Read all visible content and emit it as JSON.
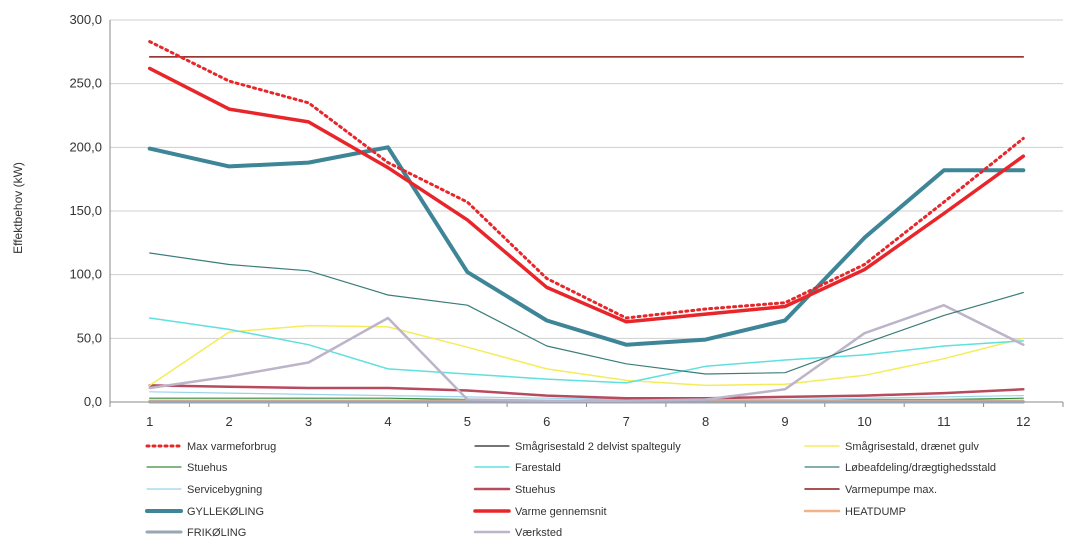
{
  "chart_data": {
    "type": "line",
    "title": "",
    "xlabel": "",
    "ylabel": "Effektbehov (kW)",
    "ylim": [
      0,
      300
    ],
    "yticks": [
      "0,0",
      "50,0",
      "100,0",
      "150,0",
      "200,0",
      "250,0",
      "300,0"
    ],
    "x": [
      1,
      2,
      3,
      4,
      5,
      6,
      7,
      8,
      9,
      10,
      11,
      12
    ],
    "grid": "horizontal",
    "legend_position": "bottom",
    "series": [
      {
        "name": "Max varmeforbrug",
        "color": "#e8262a",
        "style": "dotted",
        "width": 3,
        "values": [
          283,
          252,
          235,
          188,
          157,
          97,
          66,
          73,
          78,
          108,
          157,
          207
        ]
      },
      {
        "name": "Smågrisestald 2 delvist spalteguly",
        "color": "#222222",
        "style": "solid",
        "width": 1.2,
        "values": [
          0,
          0,
          0,
          0,
          0,
          0,
          0,
          0,
          0,
          0,
          0,
          0
        ]
      },
      {
        "name": "Smågrisestald, drænet gulv",
        "color": "#f5ec5a",
        "style": "solid",
        "width": 1.5,
        "values": [
          13,
          55,
          60,
          59,
          43,
          26,
          17,
          13,
          14,
          21,
          34,
          50
        ]
      },
      {
        "name": "Stuehus",
        "color": "#3a8a3a",
        "style": "solid",
        "width": 1.2,
        "values": [
          3,
          3,
          3,
          3,
          2,
          1,
          1,
          1,
          1,
          2,
          2,
          3
        ]
      },
      {
        "name": "Farestald",
        "color": "#5fe0e0",
        "style": "solid",
        "width": 1.5,
        "values": [
          66,
          57,
          45,
          26,
          22,
          18,
          15,
          28,
          33,
          37,
          44,
          48
        ]
      },
      {
        "name": "Løbeafdeling/drægtighedsstald",
        "color": "#3a7d7a",
        "style": "solid",
        "width": 1.2,
        "values": [
          117,
          108,
          103,
          84,
          76,
          44,
          30,
          22,
          23,
          46,
          68,
          86
        ]
      },
      {
        "name": "Servicebygning",
        "color": "#9bd3ea",
        "style": "solid",
        "width": 1.2,
        "values": [
          8,
          7,
          6,
          5,
          4,
          3,
          2,
          2,
          2,
          3,
          4,
          5
        ]
      },
      {
        "name": "Stuehus",
        "color": "#b84a5e",
        "style": "solid",
        "width": 2.5,
        "values": [
          13,
          12,
          11,
          11,
          9,
          5,
          3,
          3,
          4,
          5,
          7,
          10
        ]
      },
      {
        "name": "Varmepumpe max.",
        "color": "#8b1a1a",
        "style": "solid",
        "width": 1.5,
        "values": [
          271,
          271,
          271,
          271,
          271,
          271,
          271,
          271,
          271,
          271,
          271,
          271
        ]
      },
      {
        "name": "GYLLEKØLING",
        "color": "#3d8597",
        "style": "solid",
        "width": 4,
        "values": [
          199,
          185,
          188,
          200,
          102,
          64,
          45,
          49,
          64,
          129,
          182,
          182
        ]
      },
      {
        "name": "Varme gennemsnit",
        "color": "#e8262a",
        "style": "solid",
        "width": 3.5,
        "values": [
          262,
          230,
          220,
          184,
          143,
          90,
          63,
          69,
          75,
          104,
          148,
          193
        ]
      },
      {
        "name": "HEATDUMP",
        "color": "#f0b38a",
        "style": "solid",
        "width": 2.5,
        "values": [
          1,
          1,
          1,
          1,
          1,
          1,
          1,
          1,
          1,
          1,
          1,
          1
        ]
      },
      {
        "name": "FRIKØLING",
        "color": "#9aa6b4",
        "style": "solid",
        "width": 3,
        "values": [
          0,
          0,
          0,
          0,
          0,
          0,
          0,
          0,
          0,
          0,
          0,
          0
        ]
      },
      {
        "name": "Værksted",
        "color": "#bcb4c9",
        "style": "solid",
        "width": 2.5,
        "values": [
          11,
          20,
          31,
          66,
          2,
          1,
          1,
          2,
          10,
          54,
          76,
          45
        ]
      }
    ]
  }
}
